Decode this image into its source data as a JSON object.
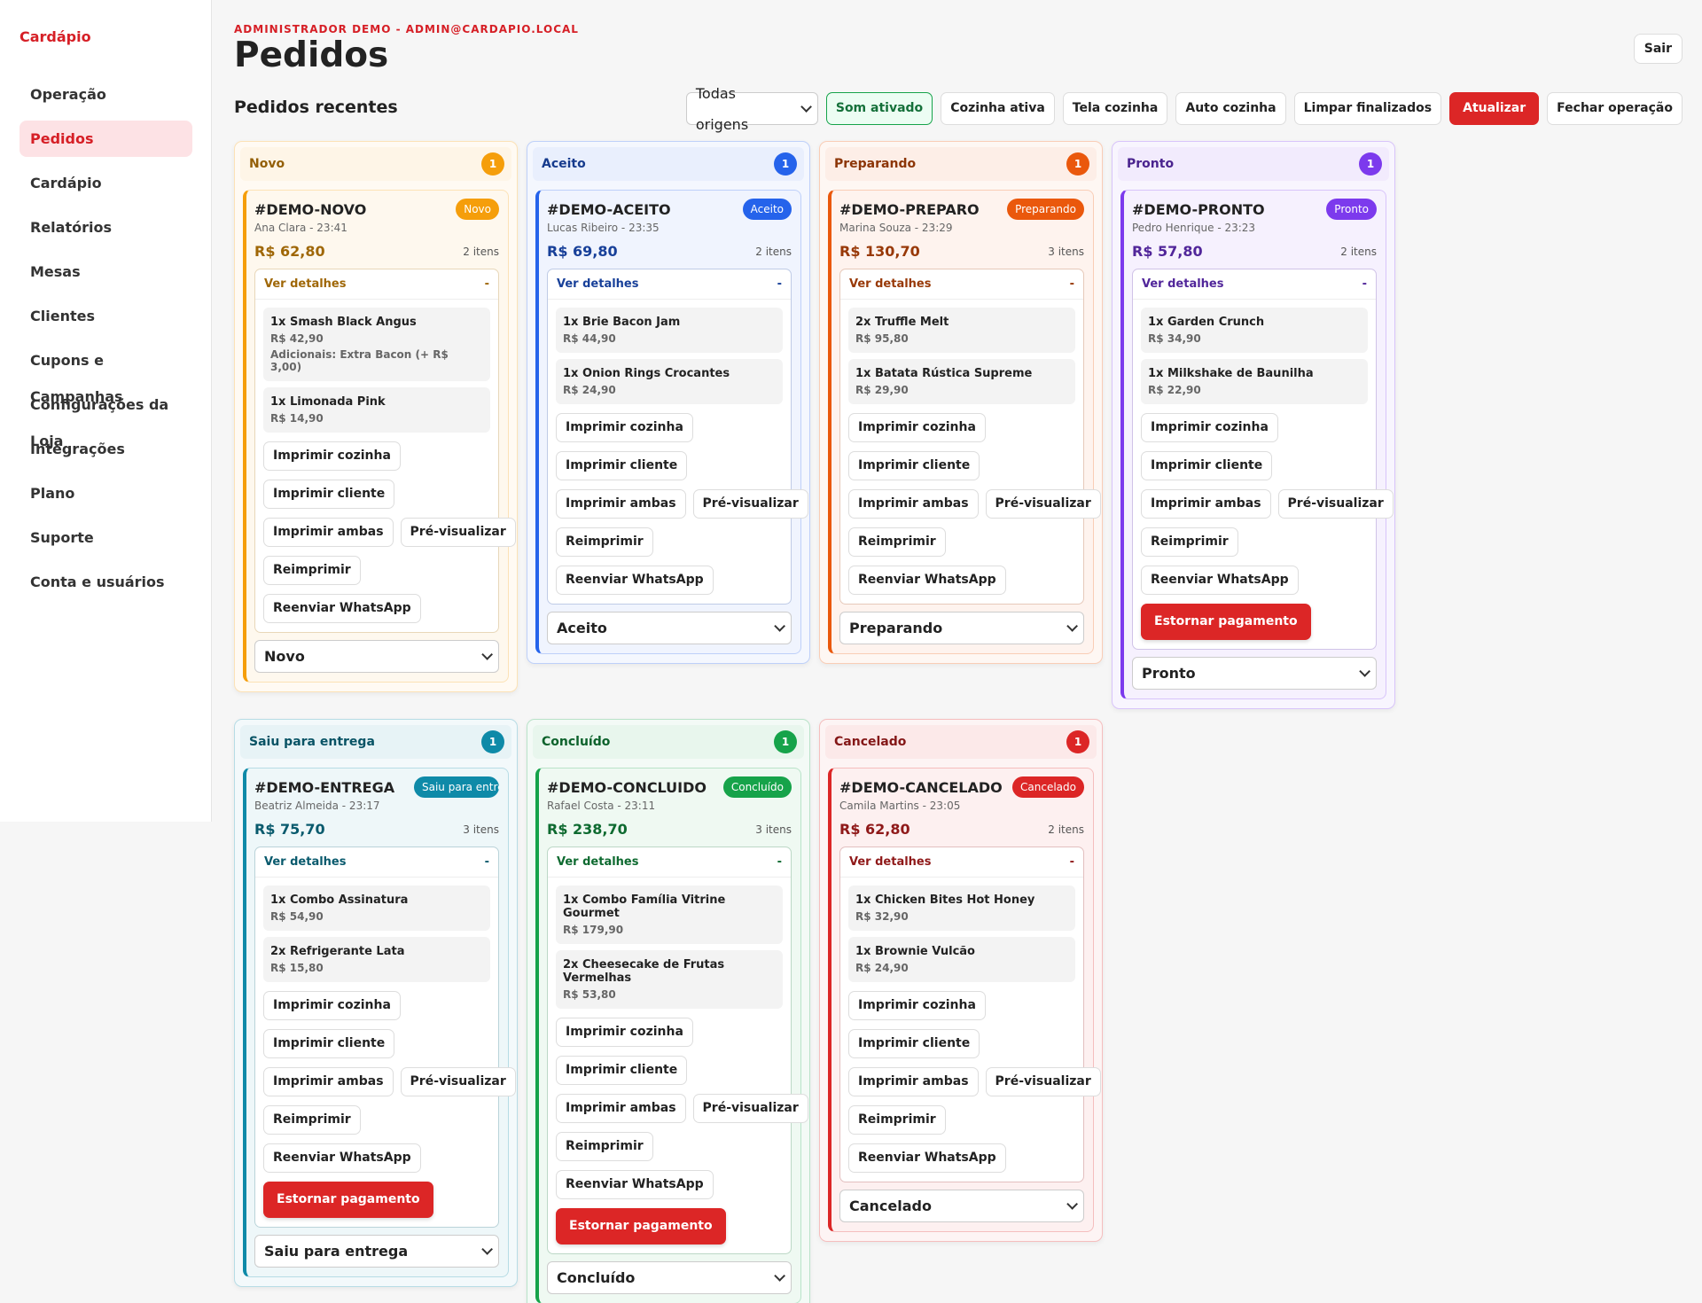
{
  "brand": "Cardápio",
  "nav": [
    "Operação",
    "Pedidos",
    "Cardápio",
    "Relatórios",
    "Mesas",
    "Clientes",
    "Cupons e Campanhas",
    "Configurações da Loja",
    "Integrações",
    "Plano",
    "Suporte",
    "Conta e usuários"
  ],
  "header": {
    "user": "ADMINISTRADOR DEMO - ADMIN@CARDAPIO.LOCAL",
    "title": "Pedidos",
    "logout": "Sair"
  },
  "toolbar": {
    "section_title": "Pedidos recentes",
    "origin_select": "Todas origens",
    "buttons": [
      "Som ativado",
      "Cozinha ativa",
      "Tela cozinha",
      "Auto cozinha",
      "Limpar finalizados",
      "Atualizar",
      "Fechar operação"
    ]
  },
  "labels": {
    "details": "Ver detalhes",
    "collapse": "-",
    "actions": [
      [
        "Imprimir cozinha"
      ],
      [
        "Imprimir cliente"
      ],
      [
        "Imprimir ambas",
        "Pré-visualizar"
      ],
      [
        "Reimprimir"
      ],
      [
        "Reenviar WhatsApp"
      ]
    ],
    "refund": "Estornar pagamento"
  },
  "columns": [
    {
      "title": "Novo",
      "count": 1,
      "color": "#f59e0b",
      "orders": [
        {
          "id": "#DEMO-NOVO",
          "customer_time": "Ana Clara - 23:41",
          "total": "R$ 62,80",
          "items_count": "2 itens",
          "refundable": false,
          "items": [
            {
              "name": "1x Smash Black Angus",
              "price": "R$ 42,90",
              "extra": "Adicionais: Extra Bacon (+ R$ 3,00)"
            },
            {
              "name": "1x Limonada Pink",
              "price": "R$ 14,90"
            }
          ]
        }
      ]
    },
    {
      "title": "Aceito",
      "count": 1,
      "color": "#2563eb",
      "orders": [
        {
          "id": "#DEMO-ACEITO",
          "customer_time": "Lucas Ribeiro - 23:35",
          "total": "R$ 69,80",
          "items_count": "2 itens",
          "refundable": false,
          "items": [
            {
              "name": "1x Brie Bacon Jam",
              "price": "R$ 44,90"
            },
            {
              "name": "1x Onion Rings Crocantes",
              "price": "R$ 24,90"
            }
          ]
        }
      ]
    },
    {
      "title": "Preparando",
      "count": 1,
      "color": "#ea580c",
      "orders": [
        {
          "id": "#DEMO-PREPARO",
          "customer_time": "Marina Souza - 23:29",
          "total": "R$ 130,70",
          "items_count": "3 itens",
          "refundable": false,
          "items": [
            {
              "name": "2x Truffle Melt",
              "price": "R$ 95,80"
            },
            {
              "name": "1x Batata Rústica Supreme",
              "price": "R$ 29,90"
            }
          ]
        }
      ]
    },
    {
      "title": "Pronto",
      "count": 1,
      "color": "#7c3aed",
      "orders": [
        {
          "id": "#DEMO-PRONTO",
          "customer_time": "Pedro Henrique - 23:23",
          "total": "R$ 57,80",
          "items_count": "2 itens",
          "refundable": true,
          "items": [
            {
              "name": "1x Garden Crunch",
              "price": "R$ 34,90"
            },
            {
              "name": "1x Milkshake de Baunilha",
              "price": "R$ 22,90"
            }
          ]
        }
      ]
    },
    {
      "title": "Saiu para entrega",
      "count": 1,
      "color": "#0e8aa8",
      "orders": [
        {
          "id": "#DEMO-ENTREGA",
          "customer_time": "Beatriz Almeida - 23:17",
          "total": "R$ 75,70",
          "items_count": "3 itens",
          "refundable": true,
          "items": [
            {
              "name": "1x Combo Assinatura",
              "price": "R$ 54,90"
            },
            {
              "name": "2x Refrigerante Lata",
              "price": "R$ 15,80"
            }
          ]
        }
      ]
    },
    {
      "title": "Concluído",
      "count": 1,
      "color": "#16a34a",
      "orders": [
        {
          "id": "#DEMO-CONCLUIDO",
          "customer_time": "Rafael Costa - 23:11",
          "total": "R$ 238,70",
          "items_count": "3 itens",
          "refundable": true,
          "items": [
            {
              "name": "1x Combo Família Vitrine Gourmet",
              "price": "R$ 179,90"
            },
            {
              "name": "2x Cheesecake de Frutas Vermelhas",
              "price": "R$ 53,80"
            }
          ]
        }
      ]
    },
    {
      "title": "Cancelado",
      "count": 1,
      "color": "#dc2626",
      "orders": [
        {
          "id": "#DEMO-CANCELADO",
          "customer_time": "Camila Martins - 23:05",
          "total": "R$ 62,80",
          "items_count": "2 itens",
          "refundable": false,
          "items": [
            {
              "name": "1x Chicken Bites Hot Honey",
              "price": "R$ 32,90"
            },
            {
              "name": "1x Brownie Vulcão",
              "price": "R$ 24,90"
            }
          ]
        }
      ]
    }
  ]
}
